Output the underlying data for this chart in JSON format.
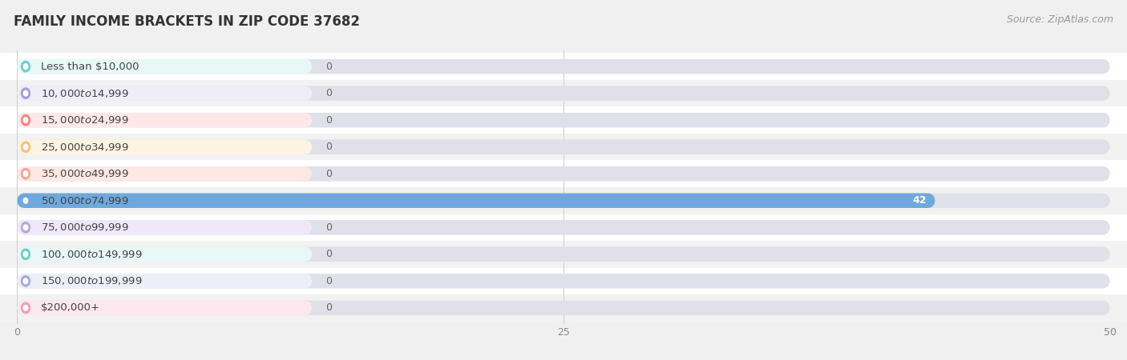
{
  "title": "FAMILY INCOME BRACKETS IN ZIP CODE 37682",
  "source": "Source: ZipAtlas.com",
  "categories": [
    "Less than $10,000",
    "$10,000 to $14,999",
    "$15,000 to $24,999",
    "$25,000 to $34,999",
    "$35,000 to $49,999",
    "$50,000 to $74,999",
    "$75,000 to $99,999",
    "$100,000 to $149,999",
    "$150,000 to $199,999",
    "$200,000+"
  ],
  "values": [
    0,
    0,
    0,
    0,
    0,
    42,
    0,
    0,
    0,
    0
  ],
  "bar_colors": [
    "#70ceca",
    "#a0a0d8",
    "#f08888",
    "#f5c080",
    "#f0a898",
    "#6fa8dc",
    "#b8a8d8",
    "#70ceca",
    "#a8a8d8",
    "#f0a0b8"
  ],
  "label_bg_colors": [
    "#e8f8f7",
    "#eeeef8",
    "#fde8e8",
    "#fdf3e3",
    "#fde8e3",
    "#e8eef8",
    "#f0e8f8",
    "#e8f8f7",
    "#eeeef8",
    "#fde8f0"
  ],
  "row_bg_colors": [
    "#ffffff",
    "#f2f2f2"
  ],
  "xlim": [
    0,
    50
  ],
  "xticks": [
    0,
    25,
    50
  ],
  "background_color": "#f0f0f0",
  "title_fontsize": 12,
  "source_fontsize": 9,
  "label_fontsize": 9.5,
  "value_fontsize": 9,
  "value_color_default": "#666666",
  "value_color_bar": "#ffffff"
}
